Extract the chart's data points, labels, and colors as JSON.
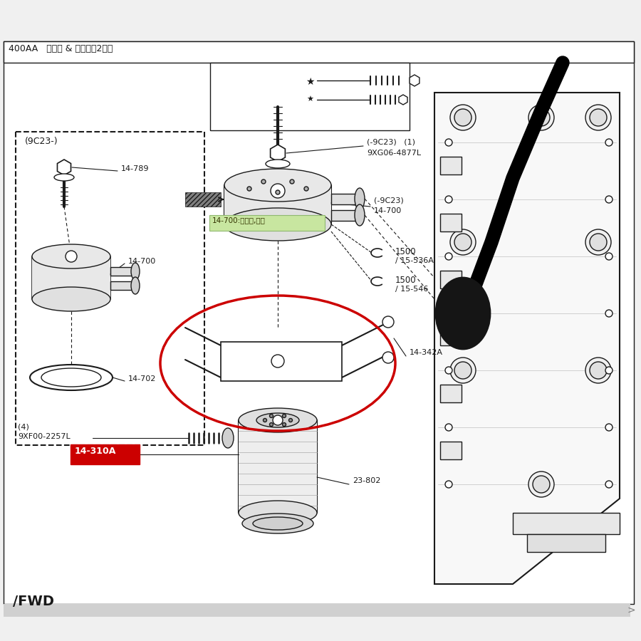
{
  "bg_color": "#f0f0f0",
  "white_color": "#ffffff",
  "line_color": "#1a1a1a",
  "red_color": "#cc0000",
  "yellow_bg": "#c8e6a0",
  "title": "400AA   机油泵 & 滤清器（2升）",
  "label_9C23": "(9C23-)",
  "label_14789": "14-789",
  "label_14700": "14-700",
  "label_14702": "14-702",
  "label_9XF00": "9XF00-2257L",
  "label_9XF00_qty": "(4)",
  "label_9XG06_top": "(-9C23)   (1)",
  "label_9XG06_bot": "9XG06-4877L",
  "label_14700b_top": "(-9C23)",
  "label_14700b_bot": "14-700",
  "label_1500a_top": "1500",
  "label_1500a_bot": "/ 15-536A",
  "label_1500b_top": "1500",
  "label_1500b_bot": "/ 15-546",
  "label_14342A": "14-342A",
  "label_14310A": "14-310A",
  "label_23802": "23-802",
  "label_tooltip": "14-700:冷却器,机油",
  "fig_w": 9.0,
  "fig_h": 9.0
}
